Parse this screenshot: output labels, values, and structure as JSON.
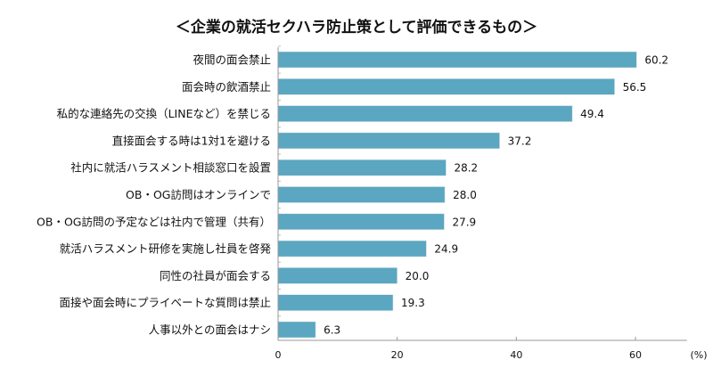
{
  "chart_data": {
    "type": "bar",
    "orientation": "horizontal",
    "title": "＜企業の就活セクハラ防止策として評価できるもの＞",
    "xlabel": "",
    "unit_label": "(%)",
    "categories": [
      "夜間の面会禁止",
      "面会時の飲酒禁止",
      "私的な連絡先の交換（LINEなど）を禁じる",
      "直接面会する時は1対1を避ける",
      "社内に就活ハラスメント相談窓口を設置",
      "OB・OG訪問はオンラインで",
      "OB・OG訪問の予定などは社内で管理（共有）",
      "就活ハラスメント研修を実施し社員を啓発",
      "同性の社員が面会する",
      "面接や面会時にプライベートな質問は禁止",
      "人事以外との面会はナシ"
    ],
    "values": [
      60.2,
      56.5,
      49.4,
      37.2,
      28.2,
      28.0,
      27.9,
      24.9,
      20.0,
      19.3,
      6.3
    ],
    "value_labels": [
      "60.2",
      "56.5",
      "49.4",
      "37.2",
      "28.2",
      "28.0",
      "27.9",
      "24.9",
      "20.0",
      "19.3",
      "6.3"
    ],
    "xlim": [
      0,
      70
    ],
    "xticks": [
      "0",
      "20",
      "40",
      "60"
    ],
    "xtick_values": [
      0,
      20,
      40,
      60
    ],
    "grid": false,
    "legend": "none",
    "bar_color": "#5ba6c0"
  }
}
